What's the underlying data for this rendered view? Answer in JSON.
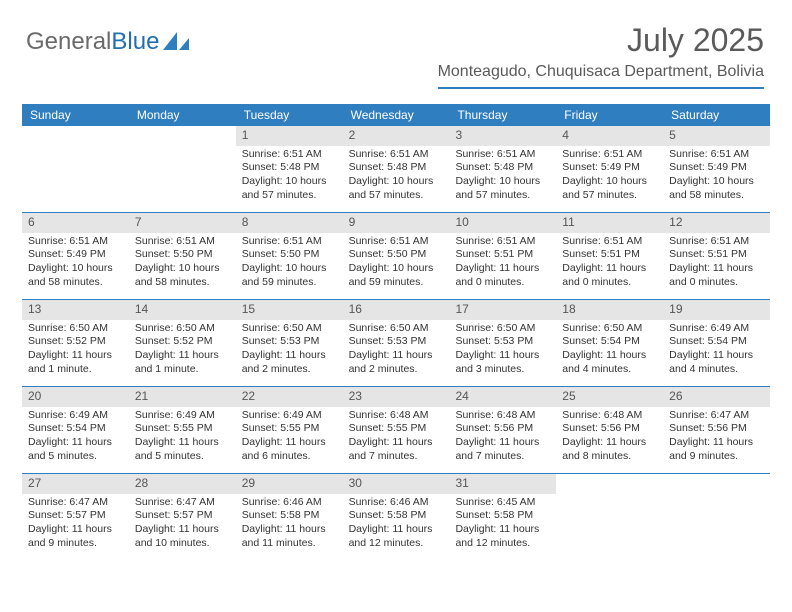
{
  "logo": {
    "text1": "General",
    "text2": "Blue"
  },
  "header": {
    "title": "July 2025",
    "subtitle": "Monteagudo, Chuquisaca Department, Bolivia"
  },
  "colors": {
    "accent": "#2f7ec0",
    "header_bg": "#2f7ec0",
    "daynum_bg": "#e5e5e5",
    "text": "#333333",
    "title_color": "#5a5a5a"
  },
  "day_headers": [
    "Sunday",
    "Monday",
    "Tuesday",
    "Wednesday",
    "Thursday",
    "Friday",
    "Saturday"
  ],
  "weeks": [
    [
      {
        "empty": true
      },
      {
        "empty": true
      },
      {
        "n": "1",
        "sr": "6:51 AM",
        "ss": "5:48 PM",
        "dl": "10 hours and 57 minutes."
      },
      {
        "n": "2",
        "sr": "6:51 AM",
        "ss": "5:48 PM",
        "dl": "10 hours and 57 minutes."
      },
      {
        "n": "3",
        "sr": "6:51 AM",
        "ss": "5:48 PM",
        "dl": "10 hours and 57 minutes."
      },
      {
        "n": "4",
        "sr": "6:51 AM",
        "ss": "5:49 PM",
        "dl": "10 hours and 57 minutes."
      },
      {
        "n": "5",
        "sr": "6:51 AM",
        "ss": "5:49 PM",
        "dl": "10 hours and 58 minutes."
      }
    ],
    [
      {
        "n": "6",
        "sr": "6:51 AM",
        "ss": "5:49 PM",
        "dl": "10 hours and 58 minutes."
      },
      {
        "n": "7",
        "sr": "6:51 AM",
        "ss": "5:50 PM",
        "dl": "10 hours and 58 minutes."
      },
      {
        "n": "8",
        "sr": "6:51 AM",
        "ss": "5:50 PM",
        "dl": "10 hours and 59 minutes."
      },
      {
        "n": "9",
        "sr": "6:51 AM",
        "ss": "5:50 PM",
        "dl": "10 hours and 59 minutes."
      },
      {
        "n": "10",
        "sr": "6:51 AM",
        "ss": "5:51 PM",
        "dl": "11 hours and 0 minutes."
      },
      {
        "n": "11",
        "sr": "6:51 AM",
        "ss": "5:51 PM",
        "dl": "11 hours and 0 minutes."
      },
      {
        "n": "12",
        "sr": "6:51 AM",
        "ss": "5:51 PM",
        "dl": "11 hours and 0 minutes."
      }
    ],
    [
      {
        "n": "13",
        "sr": "6:50 AM",
        "ss": "5:52 PM",
        "dl": "11 hours and 1 minute."
      },
      {
        "n": "14",
        "sr": "6:50 AM",
        "ss": "5:52 PM",
        "dl": "11 hours and 1 minute."
      },
      {
        "n": "15",
        "sr": "6:50 AM",
        "ss": "5:53 PM",
        "dl": "11 hours and 2 minutes."
      },
      {
        "n": "16",
        "sr": "6:50 AM",
        "ss": "5:53 PM",
        "dl": "11 hours and 2 minutes."
      },
      {
        "n": "17",
        "sr": "6:50 AM",
        "ss": "5:53 PM",
        "dl": "11 hours and 3 minutes."
      },
      {
        "n": "18",
        "sr": "6:50 AM",
        "ss": "5:54 PM",
        "dl": "11 hours and 4 minutes."
      },
      {
        "n": "19",
        "sr": "6:49 AM",
        "ss": "5:54 PM",
        "dl": "11 hours and 4 minutes."
      }
    ],
    [
      {
        "n": "20",
        "sr": "6:49 AM",
        "ss": "5:54 PM",
        "dl": "11 hours and 5 minutes."
      },
      {
        "n": "21",
        "sr": "6:49 AM",
        "ss": "5:55 PM",
        "dl": "11 hours and 5 minutes."
      },
      {
        "n": "22",
        "sr": "6:49 AM",
        "ss": "5:55 PM",
        "dl": "11 hours and 6 minutes."
      },
      {
        "n": "23",
        "sr": "6:48 AM",
        "ss": "5:55 PM",
        "dl": "11 hours and 7 minutes."
      },
      {
        "n": "24",
        "sr": "6:48 AM",
        "ss": "5:56 PM",
        "dl": "11 hours and 7 minutes."
      },
      {
        "n": "25",
        "sr": "6:48 AM",
        "ss": "5:56 PM",
        "dl": "11 hours and 8 minutes."
      },
      {
        "n": "26",
        "sr": "6:47 AM",
        "ss": "5:56 PM",
        "dl": "11 hours and 9 minutes."
      }
    ],
    [
      {
        "n": "27",
        "sr": "6:47 AM",
        "ss": "5:57 PM",
        "dl": "11 hours and 9 minutes."
      },
      {
        "n": "28",
        "sr": "6:47 AM",
        "ss": "5:57 PM",
        "dl": "11 hours and 10 minutes."
      },
      {
        "n": "29",
        "sr": "6:46 AM",
        "ss": "5:58 PM",
        "dl": "11 hours and 11 minutes."
      },
      {
        "n": "30",
        "sr": "6:46 AM",
        "ss": "5:58 PM",
        "dl": "11 hours and 12 minutes."
      },
      {
        "n": "31",
        "sr": "6:45 AM",
        "ss": "5:58 PM",
        "dl": "11 hours and 12 minutes."
      },
      {
        "empty": true
      },
      {
        "empty": true
      }
    ]
  ],
  "labels": {
    "sunrise": "Sunrise:",
    "sunset": "Sunset:",
    "daylight": "Daylight:"
  }
}
